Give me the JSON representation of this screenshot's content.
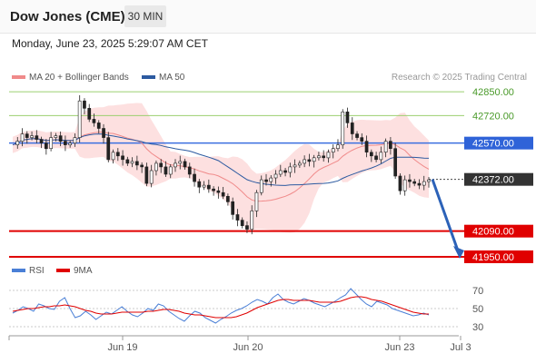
{
  "header": {
    "title": "Dow Jones (CME)",
    "timeframe": "30 MIN",
    "datetime": "Monday, June 23, 2025 5:29:07 AM CET"
  },
  "legend": {
    "ma20_label": "MA 20 + Bollinger Bands",
    "ma50_label": "MA 50",
    "copyright": "Research © 2025 Trading Central",
    "ma20_color": "#f08a8a",
    "ma50_color": "#2c5aa0"
  },
  "rsi_legend": {
    "rsi_label": "RSI",
    "ma_label": "9MA",
    "rsi_color": "#4a7fd6",
    "ma_color": "#e00000"
  },
  "chart_data": {
    "type": "candlestick",
    "x_tick_labels": [
      "Jun 19",
      "Jun 20",
      "Jun 23",
      "Jul 3"
    ],
    "price_range": [
      41940,
      42880
    ],
    "levels": [
      {
        "value": 42850,
        "label": "42850.00",
        "style": "green-line"
      },
      {
        "value": 42720,
        "label": "42720.00",
        "style": "green-line"
      },
      {
        "value": 42570,
        "label": "42570.00",
        "style": "blue-box"
      },
      {
        "value": 42372,
        "label": "42372.00",
        "style": "current-price"
      },
      {
        "value": 42090,
        "label": "42090.00",
        "style": "red-box"
      },
      {
        "value": 41950,
        "label": "41950.00",
        "style": "red-box"
      }
    ],
    "projection": {
      "from": 42372,
      "to": 41950
    },
    "price_path": [
      42560,
      42580,
      42620,
      42600,
      42610,
      42590,
      42570,
      42540,
      42600,
      42610,
      42580,
      42560,
      42570,
      42600,
      42800,
      42760,
      42700,
      42680,
      42650,
      42600,
      42480,
      42520,
      42500,
      42480,
      42460,
      42470,
      42450,
      42440,
      42350,
      42420,
      42460,
      42440,
      42400,
      42440,
      42460,
      42470,
      42440,
      42400,
      42360,
      42330,
      42340,
      42320,
      42310,
      42300,
      42280,
      42250,
      42180,
      42150,
      42120,
      42100,
      42200,
      42300,
      42370,
      42360,
      42380,
      42400,
      42420,
      42410,
      42440,
      42450,
      42460,
      42480,
      42470,
      42490,
      42500,
      42490,
      42520,
      42540,
      42560,
      42740,
      42680,
      42620,
      42600,
      42580,
      42520,
      42500,
      42480,
      42520,
      42580,
      42540,
      42390,
      42310,
      42370,
      42360,
      42350,
      42340,
      42360,
      42370
    ],
    "rsi_ticks": [
      70,
      50,
      30
    ],
    "rsi_range": [
      25,
      75
    ],
    "rsi": [
      45,
      48,
      52,
      50,
      47,
      55,
      53,
      50,
      49,
      58,
      62,
      50,
      40,
      42,
      47,
      43,
      38,
      42,
      46,
      44,
      48,
      52,
      47,
      43,
      41,
      45,
      50,
      48,
      55,
      53,
      47,
      43,
      39,
      36,
      42,
      47,
      45,
      40,
      37,
      34,
      38,
      41,
      45,
      48,
      50,
      53,
      57,
      60,
      58,
      55,
      62,
      66,
      60,
      57,
      55,
      58,
      61,
      59,
      56,
      54,
      52,
      55,
      58,
      62,
      65,
      72,
      66,
      60,
      55,
      52,
      58,
      56,
      54,
      50,
      48,
      46,
      44,
      42,
      43,
      45,
      43
    ],
    "rsi_ma": [
      47,
      48,
      49,
      50,
      50,
      51,
      52,
      52,
      53,
      53,
      54,
      53,
      52,
      50,
      48,
      47,
      45,
      44,
      44,
      44,
      45,
      46,
      46,
      46,
      46,
      46,
      47,
      47,
      48,
      49,
      49,
      48,
      47,
      45,
      44,
      43,
      43,
      42,
      41,
      40,
      40,
      40,
      40,
      41,
      43,
      45,
      48,
      51,
      53,
      55,
      57,
      59,
      60,
      60,
      59,
      59,
      59,
      59,
      58,
      57,
      57,
      57,
      57,
      58,
      60,
      62,
      63,
      63,
      62,
      60,
      59,
      58,
      56,
      54,
      52,
      50,
      48,
      46,
      45,
      44,
      44
    ]
  }
}
